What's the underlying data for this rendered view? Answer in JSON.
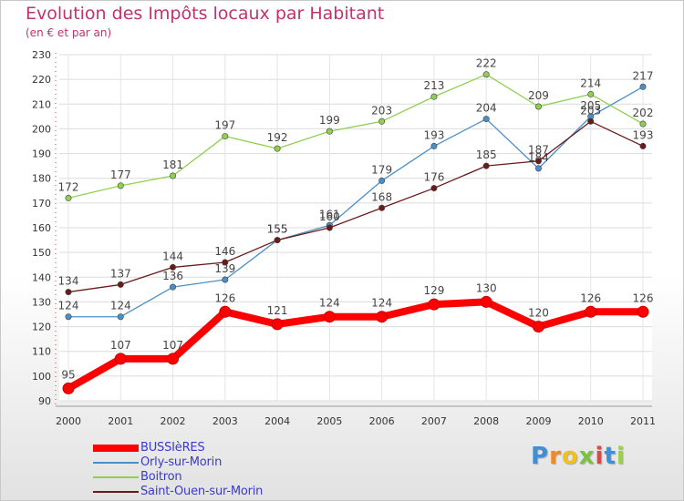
{
  "chart": {
    "title": "Evolution des Impôts locaux par Habitant",
    "subtitle": "(en € et par an)"
  },
  "brand": {
    "letters": [
      "P",
      "r",
      "o",
      "x",
      "i",
      "t",
      "i"
    ],
    "colors": [
      "#3d8fd8",
      "#f08a24",
      "#f0c020",
      "#7cc242",
      "#d64a4a",
      "#3d8fd8",
      "#9ad04a"
    ]
  },
  "chart_data": {
    "type": "line",
    "title": "Evolution des Impôts locaux par Habitant",
    "subtitle": "(en € et par an)",
    "xlabel": "",
    "ylabel": "",
    "x": [
      "2000",
      "2001",
      "2002",
      "2003",
      "2004",
      "2005",
      "2006",
      "2007",
      "2008",
      "2009",
      "2010",
      "2011"
    ],
    "y_ticks": [
      90,
      100,
      110,
      120,
      130,
      140,
      150,
      160,
      170,
      180,
      190,
      200,
      210,
      220,
      230
    ],
    "ylim": [
      90,
      230
    ],
    "grid": true,
    "legend_position": "bottom-left",
    "series": [
      {
        "name": "BUSSIèRES",
        "color": "#ff0000",
        "values": [
          95,
          107,
          107,
          126,
          121,
          124,
          124,
          129,
          130,
          120,
          126,
          126
        ]
      },
      {
        "name": "Orly-sur-Morin",
        "color": "#4a90c8",
        "values": [
          124,
          124,
          136,
          139,
          155,
          161,
          179,
          193,
          204,
          184,
          205,
          217
        ]
      },
      {
        "name": "Boitron",
        "color": "#90d050",
        "values": [
          172,
          177,
          181,
          197,
          192,
          199,
          203,
          213,
          222,
          209,
          214,
          202
        ]
      },
      {
        "name": "Saint-Ouen-sur-Morin",
        "color": "#6b1a1a",
        "values": [
          134,
          137,
          144,
          146,
          155,
          160,
          168,
          176,
          185,
          187,
          203,
          193
        ]
      }
    ]
  }
}
